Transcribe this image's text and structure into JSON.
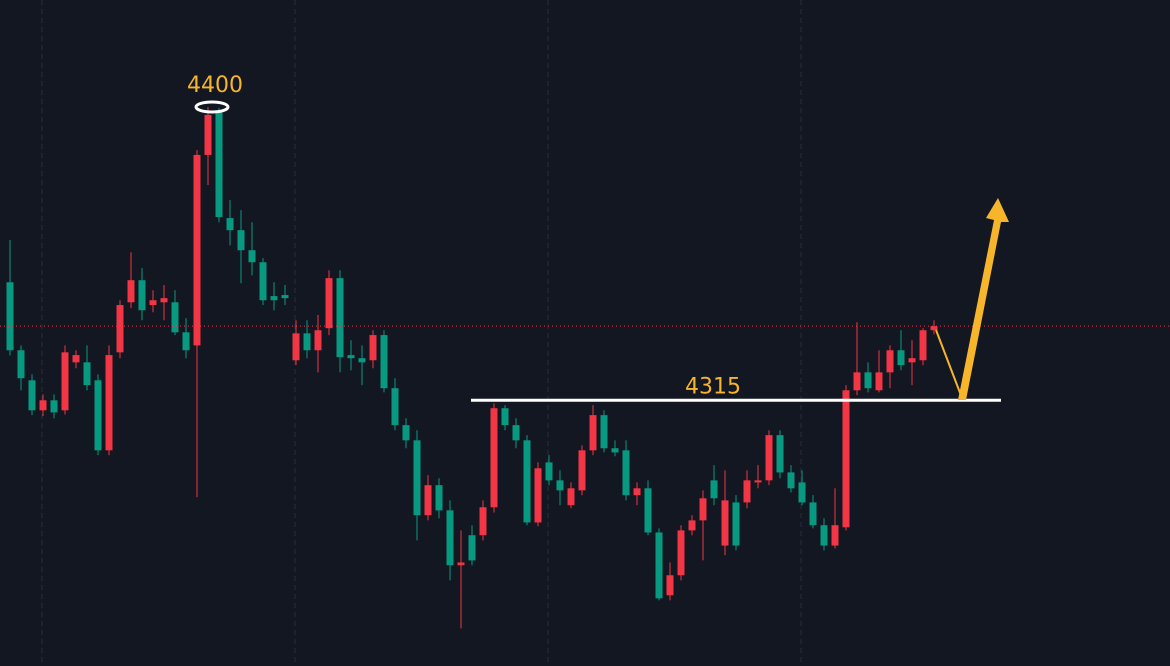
{
  "chart_data": {
    "type": "candlestick",
    "up_color": "#f23645",
    "down_color": "#089981",
    "ylim": [
      4238,
      4431
    ],
    "levels": [
      4400,
      4315
    ],
    "open": [
      4349.2,
      4329.5,
      4320.8,
      4312.1,
      4315.0,
      4312.1,
      4326.0,
      4326.0,
      4320.8,
      4300.5,
      4328.9,
      4343.4,
      4349.8,
      4342.6,
      4343.4,
      4343.4,
      4334.7,
      4330.9,
      4386.1,
      4398.5,
      4367.8,
      4364.3,
      4358.5,
      4355.0,
      4345.2,
      4345.5,
      4326.6,
      4334.4,
      4329.5,
      4335.9,
      4350.4,
      4328.1,
      4327.2,
      4326.6,
      4333.9,
      4318.5,
      4307.8,
      4303.4,
      4281.7,
      4290.4,
      4283.1,
      4267.2,
      4275.9,
      4275.9,
      4284.0,
      4312.7,
      4307.8,
      4303.4,
      4279.6,
      4297.0,
      4291.8,
      4284.6,
      4288.9,
      4300.5,
      4310.7,
      4301.1,
      4300.5,
      4287.5,
      4289.5,
      4276.7,
      4258.5,
      4264.3,
      4277.3,
      4280.2,
      4291.8,
      4272.9,
      4285.4,
      4285.4,
      4291.2,
      4291.8,
      4304.9,
      4294.1,
      4291.2,
      4285.4,
      4278.8,
      4272.9,
      4278.2,
      4317.9,
      4323.1,
      4317.9,
      4323.1,
      4329.5,
      4326.0,
      4326.6,
      4335.3
    ],
    "high": [
      4361.4,
      4330.9,
      4322.5,
      4316.7,
      4316.7,
      4330.9,
      4329.5,
      4330.9,
      4322.5,
      4330.9,
      4344.0,
      4357.9,
      4353.3,
      4346.9,
      4348.4,
      4346.9,
      4338.8,
      4387.5,
      4400.0,
      4399.7,
      4373.0,
      4370.1,
      4366.6,
      4356.2,
      4349.2,
      4348.4,
      4338.2,
      4338.2,
      4339.7,
      4352.7,
      4352.7,
      4332.4,
      4330.9,
      4335.3,
      4335.3,
      4321.4,
      4309.8,
      4306.3,
      4293.3,
      4292.4,
      4286.0,
      4277.3,
      4278.8,
      4286.0,
      4314.1,
      4313.6,
      4309.8,
      4304.9,
      4297.0,
      4299.1,
      4294.7,
      4291.2,
      4301.9,
      4313.6,
      4312.1,
      4303.4,
      4303.4,
      4291.2,
      4291.8,
      4277.9,
      4268.0,
      4278.8,
      4281.7,
      4288.9,
      4296.2,
      4294.7,
      4287.5,
      4294.7,
      4296.2,
      4306.3,
      4306.3,
      4296.2,
      4294.7,
      4287.5,
      4280.8,
      4289.5,
      4319.4,
      4337.6,
      4326.0,
      4329.5,
      4330.9,
      4335.3,
      4332.4,
      4335.9,
      4338.2
    ],
    "low": [
      4328.0,
      4317.9,
      4310.7,
      4310.4,
      4309.8,
      4310.9,
      4324.3,
      4317.9,
      4299.1,
      4299.1,
      4327.2,
      4341.7,
      4338.2,
      4340.5,
      4338.2,
      4333.9,
      4327.2,
      4286.9,
      4377.4,
      4366.6,
      4359.9,
      4348.9,
      4351.2,
      4342.6,
      4341.1,
      4342.6,
      4325.2,
      4327.2,
      4323.1,
      4333.9,
      4323.1,
      4323.7,
      4319.4,
      4324.3,
      4317.3,
      4306.3,
      4301.1,
      4274.4,
      4280.2,
      4280.8,
      4262.8,
      4248.9,
      4267.2,
      4274.4,
      4282.5,
      4306.3,
      4301.1,
      4278.8,
      4278.5,
      4290.4,
      4284.6,
      4283.7,
      4287.5,
      4299.1,
      4299.9,
      4298.8,
      4286.0,
      4284.6,
      4275.9,
      4257.0,
      4257.0,
      4262.8,
      4275.9,
      4268.6,
      4284.6,
      4270.1,
      4271.5,
      4283.7,
      4289.5,
      4290.4,
      4292.4,
      4288.3,
      4284.6,
      4277.9,
      4271.5,
      4272.1,
      4277.3,
      4316.5,
      4317.3,
      4317.3,
      4318.5,
      4323.7,
      4319.4,
      4325.2,
      4334.1
    ],
    "close": [
      4329.5,
      4321.4,
      4312.1,
      4315.0,
      4311.5,
      4328.9,
      4328.1,
      4319.4,
      4300.5,
      4328.1,
      4342.6,
      4349.8,
      4341.1,
      4344.0,
      4344.6,
      4334.7,
      4329.5,
      4386.1,
      4397.7,
      4368.1,
      4364.3,
      4358.5,
      4355.0,
      4344.0,
      4344.0,
      4344.6,
      4334.4,
      4329.5,
      4335.3,
      4350.4,
      4327.5,
      4327.2,
      4326.0,
      4333.9,
      4318.5,
      4307.8,
      4303.4,
      4281.7,
      4290.4,
      4283.1,
      4267.2,
      4268.0,
      4268.6,
      4284.0,
      4312.7,
      4307.8,
      4303.4,
      4279.6,
      4295.3,
      4291.8,
      4288.9,
      4289.5,
      4300.5,
      4310.7,
      4301.1,
      4299.9,
      4287.5,
      4289.5,
      4276.7,
      4257.6,
      4264.3,
      4277.3,
      4280.2,
      4286.6,
      4286.6,
      4286.0,
      4272.9,
      4291.8,
      4291.8,
      4304.9,
      4294.1,
      4289.5,
      4285.4,
      4278.8,
      4272.9,
      4278.8,
      4317.9,
      4323.1,
      4318.5,
      4323.1,
      4329.5,
      4325.2,
      4327.2,
      4335.3,
      4336.5
    ]
  }
}
